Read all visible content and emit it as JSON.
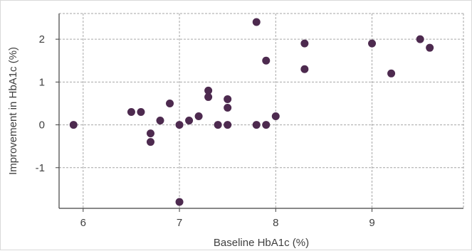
{
  "chart_data": {
    "type": "scatter",
    "title": "",
    "xlabel": "Baseline HbA1c (%)",
    "ylabel": "Improvement in HbA1c (%)",
    "xlim": [
      5.75,
      9.95
    ],
    "ylim": [
      -1.95,
      2.6
    ],
    "xticks": [
      6,
      7,
      8,
      9
    ],
    "yticks": [
      -1,
      0,
      1,
      2
    ],
    "grid": true,
    "marker_color": "#4d2a4f",
    "gridline_color": "#a6a6a6",
    "points": [
      {
        "x": 5.9,
        "y": 0.0
      },
      {
        "x": 6.5,
        "y": 0.3
      },
      {
        "x": 6.6,
        "y": 0.3
      },
      {
        "x": 6.7,
        "y": -0.2
      },
      {
        "x": 6.7,
        "y": -0.4
      },
      {
        "x": 6.8,
        "y": 0.1
      },
      {
        "x": 6.9,
        "y": 0.5
      },
      {
        "x": 7.0,
        "y": 0.0
      },
      {
        "x": 7.0,
        "y": -1.8
      },
      {
        "x": 7.1,
        "y": 0.1
      },
      {
        "x": 7.2,
        "y": 0.2
      },
      {
        "x": 7.3,
        "y": 0.8
      },
      {
        "x": 7.3,
        "y": 0.65
      },
      {
        "x": 7.4,
        "y": 0.0
      },
      {
        "x": 7.5,
        "y": 0.6
      },
      {
        "x": 7.5,
        "y": 0.4
      },
      {
        "x": 7.5,
        "y": 0.0
      },
      {
        "x": 7.8,
        "y": 2.4
      },
      {
        "x": 7.8,
        "y": 0.0
      },
      {
        "x": 7.9,
        "y": 1.5
      },
      {
        "x": 7.9,
        "y": 0.0
      },
      {
        "x": 8.0,
        "y": 0.2
      },
      {
        "x": 8.3,
        "y": 1.9
      },
      {
        "x": 8.3,
        "y": 1.3
      },
      {
        "x": 9.0,
        "y": 1.9
      },
      {
        "x": 9.2,
        "y": 1.2
      },
      {
        "x": 9.5,
        "y": 2.0
      },
      {
        "x": 9.6,
        "y": 1.8
      }
    ]
  }
}
